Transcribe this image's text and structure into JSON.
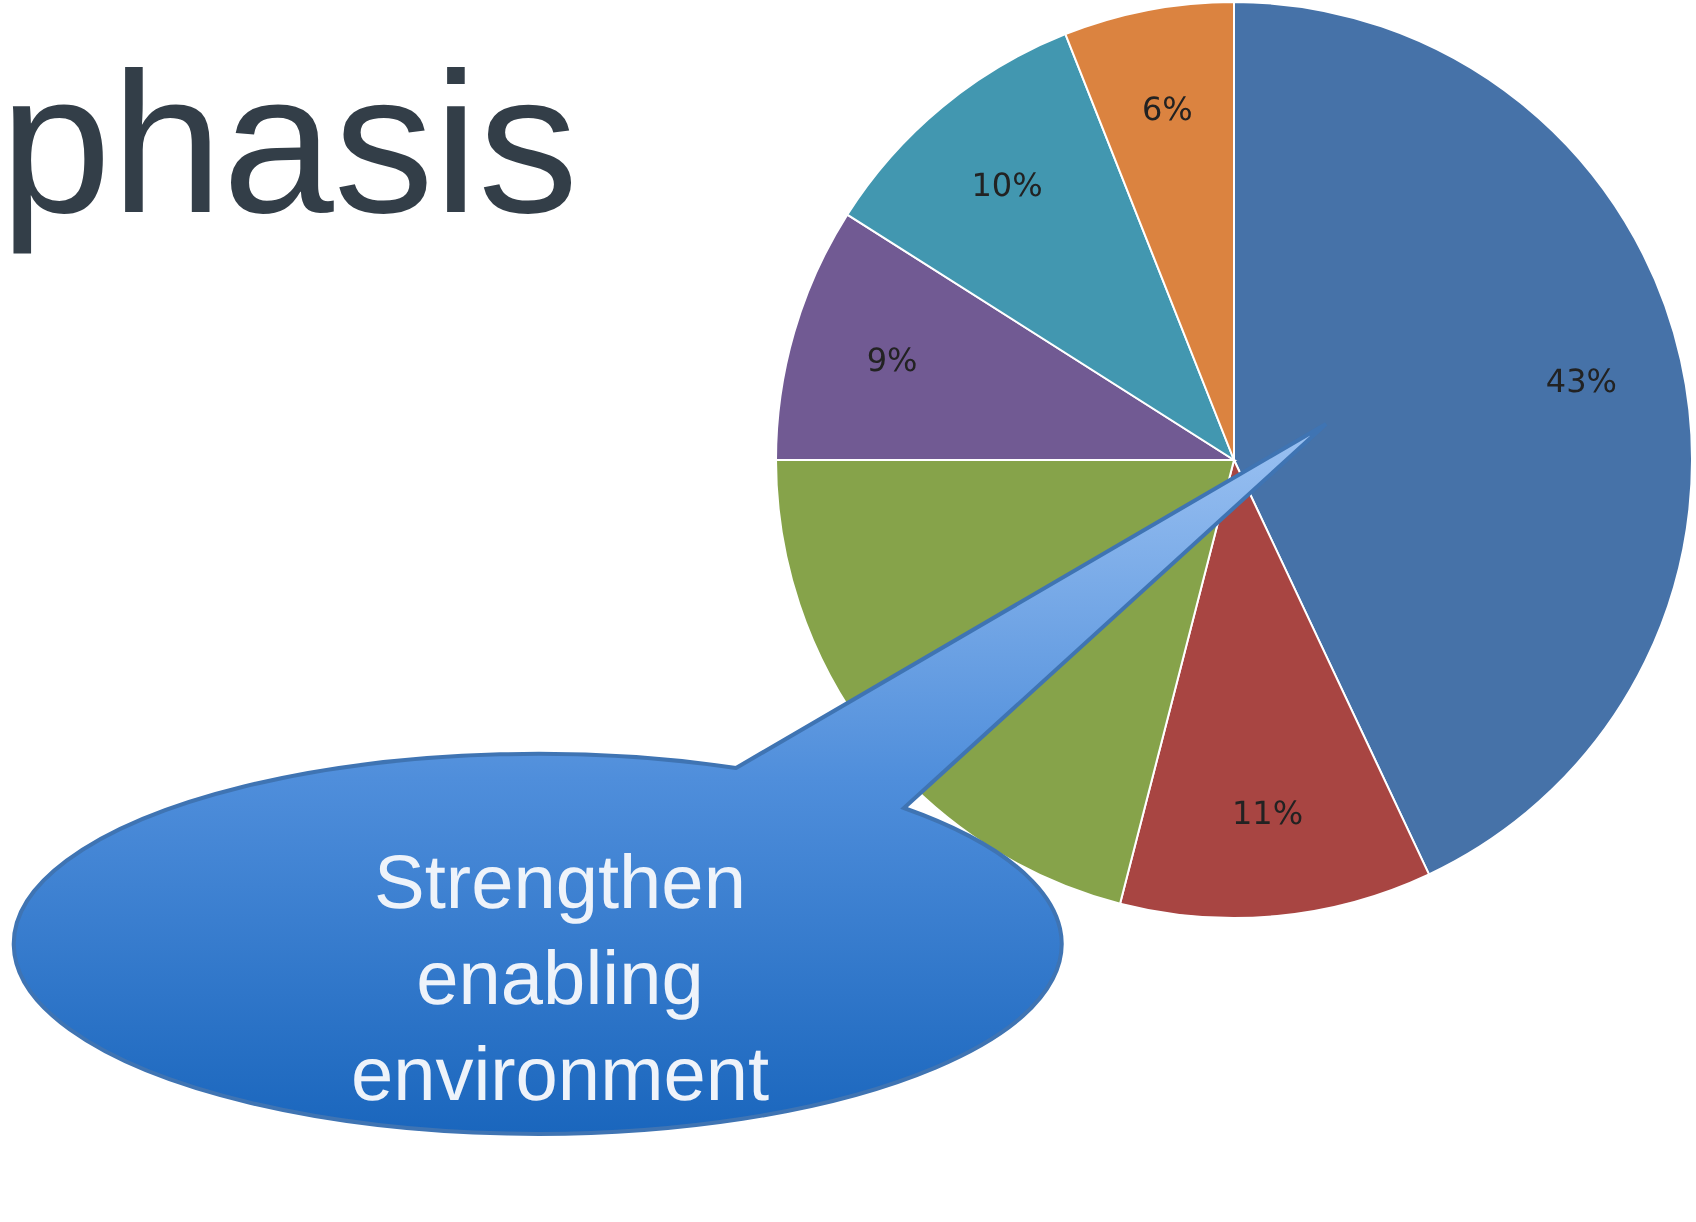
{
  "chart_data": {
    "type": "pie",
    "title": "phasis",
    "categories": [
      null,
      null,
      null,
      null,
      null,
      null
    ],
    "values": [
      43,
      11,
      21,
      9,
      10,
      6
    ],
    "colors": [
      "#4672a8",
      "#a84542",
      "#86a34a",
      "#715a93",
      "#4297b0",
      "#db8340"
    ],
    "value_labels": [
      "43%",
      "11%",
      null,
      "9%",
      "10%",
      "6%"
    ],
    "annotations": [
      "Strengthen enabling environment"
    ]
  }
}
